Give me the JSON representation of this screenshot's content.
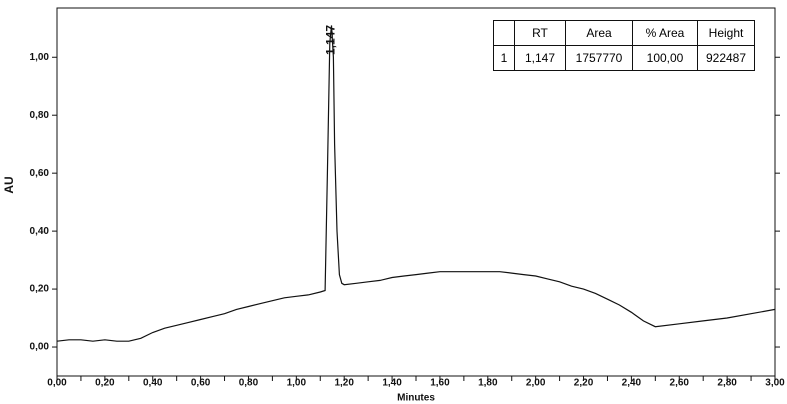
{
  "chart_data": {
    "type": "line",
    "xlabel": "Minutes",
    "ylabel": "AU",
    "x": [
      0.0,
      0.05,
      0.1,
      0.15,
      0.2,
      0.25,
      0.3,
      0.35,
      0.4,
      0.45,
      0.5,
      0.55,
      0.6,
      0.65,
      0.7,
      0.75,
      0.8,
      0.85,
      0.9,
      0.95,
      1.0,
      1.05,
      1.1,
      1.12,
      1.13,
      1.14,
      1.147,
      1.155,
      1.16,
      1.17,
      1.18,
      1.19,
      1.2,
      1.25,
      1.3,
      1.35,
      1.4,
      1.45,
      1.5,
      1.55,
      1.6,
      1.7,
      1.8,
      1.85,
      1.9,
      1.95,
      2.0,
      2.05,
      2.1,
      2.15,
      2.2,
      2.25,
      2.3,
      2.35,
      2.4,
      2.45,
      2.5,
      2.6,
      2.7,
      2.8,
      2.9,
      3.0
    ],
    "values": [
      0.02,
      0.025,
      0.025,
      0.02,
      0.025,
      0.02,
      0.02,
      0.03,
      0.05,
      0.065,
      0.075,
      0.085,
      0.095,
      0.105,
      0.115,
      0.13,
      0.14,
      0.15,
      0.16,
      0.17,
      0.175,
      0.18,
      0.19,
      0.195,
      0.6,
      1.05,
      1.11,
      1.0,
      0.7,
      0.4,
      0.25,
      0.22,
      0.215,
      0.22,
      0.225,
      0.23,
      0.24,
      0.245,
      0.25,
      0.255,
      0.26,
      0.26,
      0.26,
      0.26,
      0.255,
      0.25,
      0.245,
      0.235,
      0.225,
      0.21,
      0.2,
      0.185,
      0.165,
      0.145,
      0.12,
      0.09,
      0.07,
      0.08,
      0.09,
      0.1,
      0.115,
      0.13
    ],
    "color": "#111111",
    "xlim": [
      0,
      3.0
    ],
    "ylim": [
      -0.1,
      1.17
    ],
    "xticks": [
      {
        "value": 0.0,
        "label": "0,00"
      },
      {
        "value": 0.1,
        "label": "0,10"
      },
      {
        "value": 0.2,
        "label": "0,20"
      },
      {
        "value": 0.3,
        "label": "0,30"
      },
      {
        "value": 0.4,
        "label": "0,40"
      },
      {
        "value": 0.5,
        "label": "0,50"
      },
      {
        "value": 0.6,
        "label": "0,60"
      },
      {
        "value": 0.7,
        "label": "0,70"
      },
      {
        "value": 0.8,
        "label": "0,80"
      },
      {
        "value": 0.9,
        "label": "0,90"
      },
      {
        "value": 1.0,
        "label": "1,00"
      },
      {
        "value": 1.1,
        "label": "1,10"
      },
      {
        "value": 1.2,
        "label": "1,20"
      },
      {
        "value": 1.3,
        "label": "1,30"
      },
      {
        "value": 1.4,
        "label": "1,40"
      },
      {
        "value": 1.5,
        "label": "1,50"
      },
      {
        "value": 1.6,
        "label": "1,60"
      },
      {
        "value": 1.7,
        "label": "1,70"
      },
      {
        "value": 1.8,
        "label": "1,80"
      },
      {
        "value": 1.9,
        "label": "1,90"
      },
      {
        "value": 2.0,
        "label": "2,00"
      },
      {
        "value": 2.1,
        "label": "2,10"
      },
      {
        "value": 2.2,
        "label": "2,20"
      },
      {
        "value": 2.3,
        "label": "2,30"
      },
      {
        "value": 2.4,
        "label": "2,40"
      },
      {
        "value": 2.5,
        "label": "2,50"
      },
      {
        "value": 2.6,
        "label": "2,60"
      },
      {
        "value": 2.7,
        "label": "2,70"
      },
      {
        "value": 2.8,
        "label": "2,80"
      },
      {
        "value": 2.9,
        "label": "2,90"
      },
      {
        "value": 3.0,
        "label": "3,00"
      }
    ],
    "yticks": [
      {
        "value": 0.0,
        "label": "0,00"
      },
      {
        "value": 0.2,
        "label": "0,20"
      },
      {
        "value": 0.4,
        "label": "0,40"
      },
      {
        "value": 0.6,
        "label": "0,60"
      },
      {
        "value": 0.8,
        "label": "0,80"
      },
      {
        "value": 1.0,
        "label": "1,00"
      }
    ],
    "peak_labels": [
      {
        "x": 1.147,
        "label": "1,147"
      }
    ],
    "table": {
      "header": [
        "RT",
        "Area",
        "% Area",
        "Height"
      ],
      "rows": [
        [
          "1",
          "1,147",
          "1757770",
          "100,00",
          "922487"
        ]
      ]
    }
  }
}
